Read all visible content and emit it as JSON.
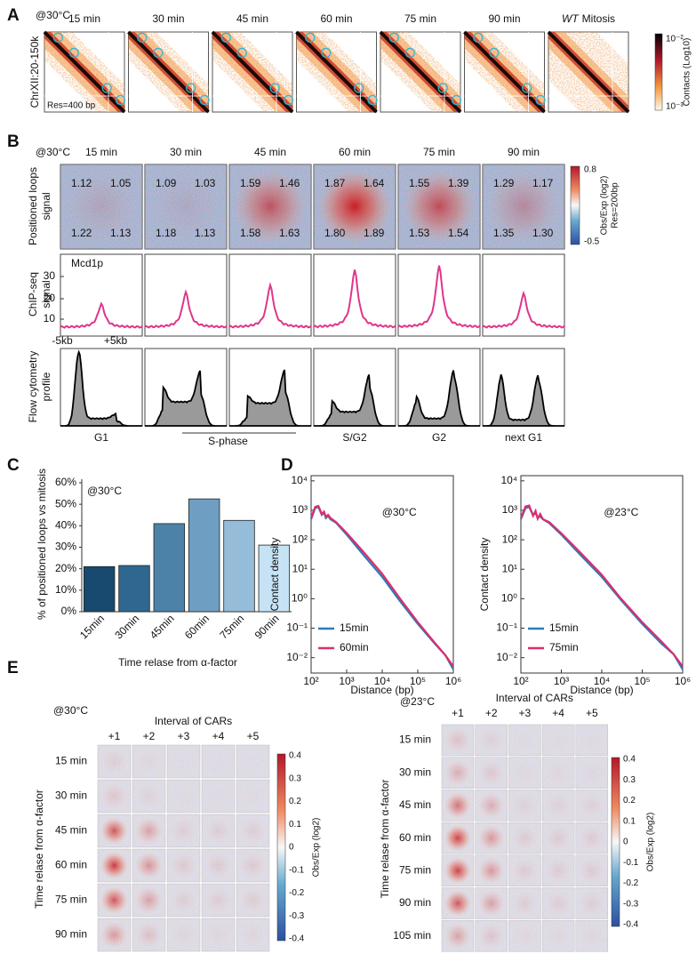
{
  "panel_labels": [
    "A",
    "B",
    "C",
    "D",
    "E"
  ],
  "panel_a": {
    "condition": "@30°C",
    "columns": [
      "15 min",
      "30 min",
      "45 min",
      "60 min",
      "75 min",
      "90 min"
    ],
    "mitosis_prefix": "WT",
    "mitosis_suffix": "Mitosis",
    "y_label": "ChrXII:20-150k",
    "resolution": "Res=400 bp",
    "colorbar_ticks": [
      "10⁻²",
      "10⁻³"
    ],
    "colorbar_label": "Contacts (Log10)"
  },
  "panel_b": {
    "condition": "@30°C",
    "columns": [
      "15 min",
      "30 min",
      "45 min",
      "60 min",
      "75 min",
      "90 min"
    ],
    "loop_values": [
      [
        "1.12",
        "1.05",
        "1.22",
        "1.13"
      ],
      [
        "1.09",
        "1.03",
        "1.18",
        "1.13"
      ],
      [
        "1.59",
        "1.46",
        "1.58",
        "1.63"
      ],
      [
        "1.87",
        "1.64",
        "1.80",
        "1.89"
      ],
      [
        "1.55",
        "1.39",
        "1.53",
        "1.54"
      ],
      [
        "1.29",
        "1.17",
        "1.35",
        "1.30"
      ]
    ],
    "row_labels": [
      [
        "Positioned loops",
        "signal"
      ],
      [
        "ChIP-seq",
        "signal"
      ],
      [
        "Flow cytometry",
        "profile"
      ]
    ],
    "colorbar_ticks": [
      "0.8",
      "-0.5"
    ],
    "colorbar_label": "Obs/Exp (log2)",
    "colorbar_res": "Res=200bp",
    "protein": "Mcd1p",
    "chip_ticks": [
      "30",
      "20",
      "10"
    ],
    "window": [
      "-5kb",
      "+5kb"
    ],
    "phases": [
      "G1",
      "S-phase",
      "S/G2",
      "G2",
      "next G1"
    ]
  },
  "chart_data": [
    {
      "type": "bar",
      "annotation": "@30°C",
      "x_label": "Time relase from α-factor",
      "y_label": "% of positioned loops vs mitosis",
      "categories": [
        "15min",
        "30min",
        "45min",
        "60min",
        "75min",
        "90min"
      ],
      "values": [
        21,
        21.5,
        41,
        52.5,
        42.5,
        31
      ],
      "colors": [
        "#174a6e",
        "#2f6790",
        "#4d82a8",
        "#6e9fc2",
        "#95bcd8",
        "#c6e3f5"
      ],
      "ylim": [
        0,
        60
      ],
      "yticks": [
        {
          "value": 0,
          "label": "0%"
        },
        {
          "value": 10,
          "label": "10%"
        },
        {
          "value": 20,
          "label": "20%"
        },
        {
          "value": 30,
          "label": "30%"
        },
        {
          "value": 40,
          "label": "40%"
        },
        {
          "value": 50,
          "label": "50%"
        },
        {
          "value": 60,
          "label": "60%"
        }
      ]
    },
    {
      "type": "line",
      "annotation": "@30°C",
      "x_label": "Distance (bp)",
      "y_label": "Contact density",
      "xscale": "log",
      "yscale": "log",
      "legend": "lower left",
      "x": [
        100,
        130,
        160,
        200,
        230,
        260,
        300,
        350,
        500,
        1000,
        3000,
        10000,
        30000,
        100000,
        300000,
        600000,
        1000000
      ],
      "series": [
        {
          "name": "15min",
          "color": "#2b7bba",
          "values": [
            500,
            1200,
            1300,
            700,
            850,
            550,
            650,
            500,
            380,
            150,
            30,
            5.5,
            0.9,
            0.14,
            0.03,
            0.012,
            0.004
          ]
        },
        {
          "name": "60min",
          "color": "#dd2d6e",
          "values": [
            550,
            1300,
            1400,
            750,
            900,
            600,
            700,
            550,
            400,
            170,
            38,
            7,
            1.1,
            0.16,
            0.032,
            0.012,
            0.005
          ]
        }
      ],
      "xlim": [
        100,
        1000000
      ],
      "xticks": [
        {
          "value": 100,
          "label": "10²"
        },
        {
          "value": 1000,
          "label": "10³"
        },
        {
          "value": 10000,
          "label": "10⁴"
        },
        {
          "value": 100000,
          "label": "10⁵"
        },
        {
          "value": 1000000,
          "label": "10⁶"
        }
      ],
      "ylim": [
        0.003,
        15000
      ],
      "yticks": [
        {
          "value": 0.01,
          "label": "10⁻²"
        },
        {
          "value": 0.1,
          "label": "10⁻¹"
        },
        {
          "value": 1,
          "label": "10⁰"
        },
        {
          "value": 10,
          "label": "10¹"
        },
        {
          "value": 100,
          "label": "10²"
        },
        {
          "value": 1000,
          "label": "10³"
        },
        {
          "value": 10000,
          "label": "10⁴"
        }
      ]
    },
    {
      "type": "line",
      "annotation": "@23°C",
      "x_label": "Distance (bp)",
      "y_label": "Contact density",
      "xscale": "log",
      "yscale": "log",
      "legend": "lower left",
      "x": [
        100,
        130,
        160,
        200,
        230,
        260,
        300,
        350,
        500,
        1000,
        3000,
        10000,
        30000,
        100000,
        300000,
        600000,
        1000000
      ],
      "series": [
        {
          "name": "15min",
          "color": "#2b7bba",
          "values": [
            500,
            1200,
            1300,
            700,
            800,
            560,
            620,
            500,
            370,
            150,
            30,
            5.5,
            0.9,
            0.14,
            0.03,
            0.013,
            0.004
          ]
        },
        {
          "name": "75min",
          "color": "#dd2d6e",
          "values": [
            550,
            1350,
            1450,
            650,
            950,
            520,
            750,
            500,
            400,
            165,
            36,
            6.5,
            1,
            0.16,
            0.035,
            0.013,
            0.005
          ]
        }
      ],
      "xlim": [
        100,
        1000000
      ],
      "xticks": [
        {
          "value": 100,
          "label": "10²"
        },
        {
          "value": 1000,
          "label": "10³"
        },
        {
          "value": 10000,
          "label": "10⁴"
        },
        {
          "value": 100000,
          "label": "10⁵"
        },
        {
          "value": 1000000,
          "label": "10⁶"
        }
      ],
      "ylim": [
        0.003,
        15000
      ],
      "yticks": [
        {
          "value": 0.01,
          "label": "10⁻²"
        },
        {
          "value": 0.1,
          "label": "10⁻¹"
        },
        {
          "value": 1,
          "label": "10⁰"
        },
        {
          "value": 10,
          "label": "10¹"
        },
        {
          "value": 100,
          "label": "10²"
        },
        {
          "value": 1000,
          "label": "10³"
        },
        {
          "value": 10000,
          "label": "10⁴"
        }
      ]
    }
  ],
  "panel_e": [
    {
      "condition": "@30°C",
      "header": "Interval of CARs",
      "columns": [
        "+1",
        "+2",
        "+3",
        "+4",
        "+5"
      ],
      "rows": [
        "15 min",
        "30 min",
        "45 min",
        "60 min",
        "75 min",
        "90 min"
      ],
      "y_label": "Time relase from α-factor",
      "colorbar_ticks": [
        "0.4",
        "0.3",
        "0.2",
        "0.1",
        "0",
        "-0.1",
        "-0.2",
        "-0.3",
        "-0.4"
      ],
      "colorbar_label": "Obs/Exp (log2)"
    },
    {
      "condition": "@23°C",
      "header": "Interval of CARs",
      "columns": [
        "+1",
        "+2",
        "+3",
        "+4",
        "+5"
      ],
      "rows": [
        "15 min",
        "30 min",
        "45 min",
        "60 min",
        "75 min",
        "90 min",
        "105 min"
      ],
      "y_label": "Time relase from α-factor",
      "colorbar_ticks": [
        "0.4",
        "0.3",
        "0.2",
        "0.1",
        "0",
        "-0.1",
        "-0.2",
        "-0.3",
        "-0.4"
      ],
      "colorbar_label": "Obs/Exp (log2)"
    }
  ]
}
